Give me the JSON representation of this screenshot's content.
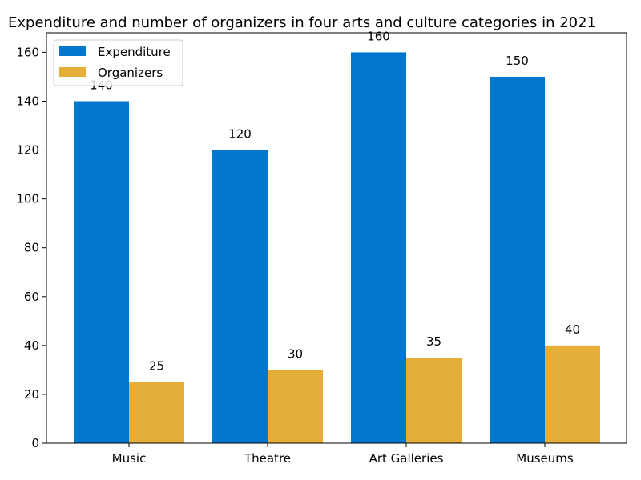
{
  "chart_data": {
    "type": "bar",
    "title": "Expenditure and number of organizers in four arts and culture categories in 2021",
    "xlabel": "",
    "ylabel": "",
    "categories": [
      "Music",
      "Theatre",
      "Art Galleries",
      "Museums"
    ],
    "series": [
      {
        "name": "Expenditure",
        "values": [
          140,
          120,
          160,
          150
        ],
        "color": "#0077cc"
      },
      {
        "name": "Organizers",
        "values": [
          25,
          30,
          35,
          40
        ],
        "color": "#e4ae38"
      }
    ],
    "ylim": [
      0,
      168
    ],
    "yticks": [
      0,
      20,
      40,
      60,
      80,
      100,
      120,
      140,
      160
    ],
    "grid": false,
    "legend": "top-left"
  }
}
